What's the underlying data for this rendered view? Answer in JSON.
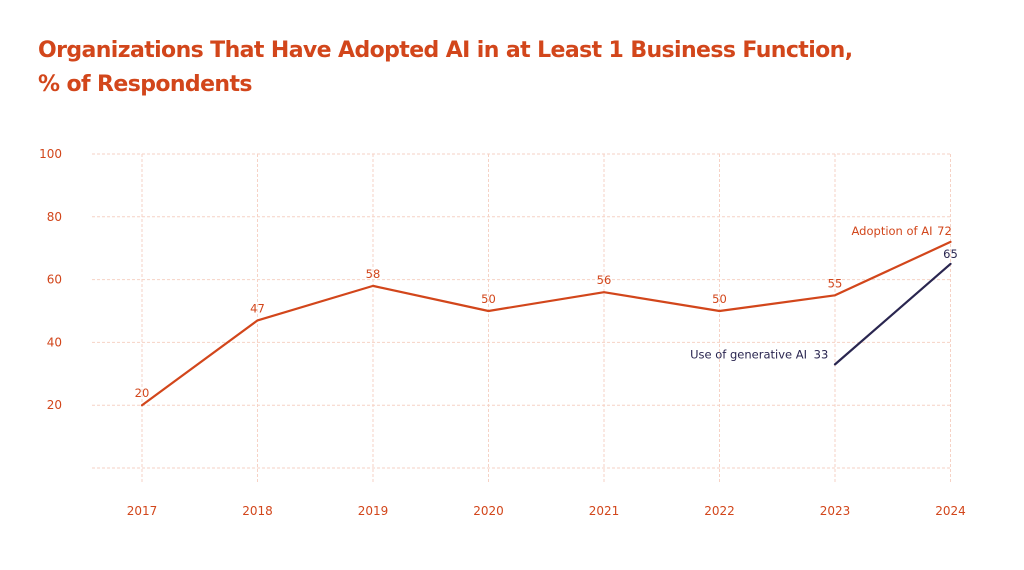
{
  "title_line1": "Organizations That Have Adopted AI in at Least 1 Business Function,",
  "title_line2": "% of Respondents",
  "colors": {
    "accent": "#d2461b",
    "series_adoption": "#d2461b",
    "series_genai": "#2a2650",
    "grid": "#f6d2c5",
    "tick_text": "#d2461b"
  },
  "chart_data": {
    "type": "line",
    "title": "Organizations That Have Adopted AI in at Least 1 Business Function, % of Respondents",
    "xlabel": "",
    "ylabel": "",
    "x": [
      "2017",
      "2018",
      "2019",
      "2020",
      "2021",
      "2022",
      "2023",
      "2024"
    ],
    "ylim": [
      0,
      100
    ],
    "yticks": [
      "20",
      "40",
      "60",
      "80",
      "100"
    ],
    "grid": true,
    "series": [
      {
        "name": "Adoption of AI",
        "color": "#d2461b",
        "values": [
          20,
          47,
          58,
          50,
          56,
          50,
          55,
          72
        ],
        "labels": [
          "20",
          "47",
          "58",
          "50",
          "56",
          "50",
          "55",
          "72"
        ]
      },
      {
        "name": "Use of generative AI",
        "color": "#2a2650",
        "values": [
          null,
          null,
          null,
          null,
          null,
          null,
          33,
          65
        ],
        "labels": [
          "",
          "",
          "",
          "",
          "",
          "",
          "33",
          "65"
        ]
      }
    ]
  }
}
